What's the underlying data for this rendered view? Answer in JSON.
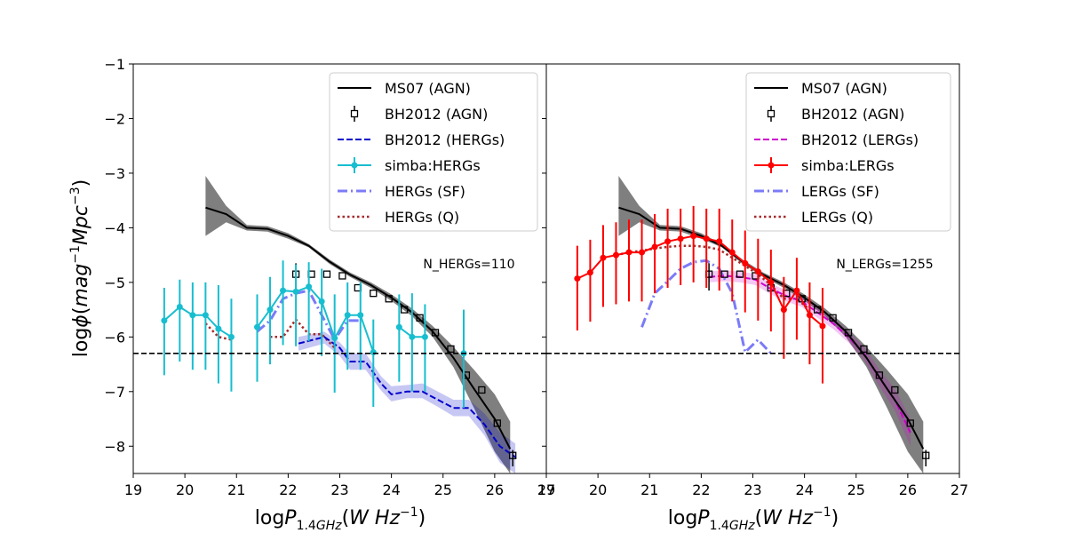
{
  "chart_data": [
    {
      "type": "line",
      "panel": "left",
      "annotation": "N_HERGs=110",
      "xlabel": "logP_{1.4GHz}(W Hz^{-1})",
      "ylabel": "logϕ(mag^{-1}Mpc^{-3})",
      "xlim": [
        19,
        27
      ],
      "ylim": [
        -8.5,
        -1
      ],
      "xticks": [
        "19",
        "20",
        "21",
        "22",
        "23",
        "24",
        "25",
        "26",
        "27"
      ],
      "yticks": [
        "−1",
        "−2",
        "−3",
        "−4",
        "−5",
        "−6",
        "−7",
        "−8"
      ],
      "hline": -6.3,
      "legend": [
        "MS07 (AGN)",
        "BH2012 (AGN)",
        "BH2012 (HERGs)",
        "simba:HERGs",
        "HERGs (SF)",
        "HERGs (Q)"
      ],
      "series": [
        {
          "name": "MS07 (AGN)",
          "color": "#000000",
          "x": [
            20.4,
            20.8,
            21.2,
            21.6,
            22.0,
            22.4,
            22.8,
            23.2,
            23.6,
            24.0,
            24.4,
            24.8,
            25.2,
            25.6,
            26.0,
            26.3
          ],
          "y": [
            -3.63,
            -3.75,
            -4.0,
            -4.02,
            -4.15,
            -4.33,
            -4.62,
            -4.86,
            -5.05,
            -5.28,
            -5.55,
            -5.9,
            -6.38,
            -6.95,
            -7.5,
            -8.05
          ],
          "band_upper": [
            -3.05,
            -3.6,
            -3.95,
            -3.97,
            -4.1,
            -4.3,
            -4.58,
            -4.82,
            -5.0,
            -5.22,
            -5.48,
            -5.8,
            -6.18,
            -6.6,
            -7.05,
            -7.55
          ],
          "band_lower": [
            -4.15,
            -3.9,
            -4.05,
            -4.07,
            -4.2,
            -4.36,
            -4.66,
            -4.9,
            -5.1,
            -5.34,
            -5.62,
            -6.0,
            -6.55,
            -7.3,
            -8.1,
            -8.5
          ]
        },
        {
          "name": "BH2012 (AGN)",
          "color": "#000000",
          "x": [
            22.15,
            22.45,
            22.75,
            23.05,
            23.35,
            23.65,
            23.95,
            24.25,
            24.55,
            24.85,
            25.15,
            25.45,
            25.75,
            26.05,
            26.35
          ],
          "y": [
            -4.85,
            -4.85,
            -4.85,
            -4.88,
            -5.1,
            -5.2,
            -5.3,
            -5.5,
            -5.65,
            -5.92,
            -6.22,
            -6.7,
            -6.97,
            -7.58,
            -8.17
          ],
          "err_low": [
            0.3,
            0,
            0,
            0,
            0,
            0,
            0,
            0,
            0,
            0,
            0,
            0,
            0,
            0,
            0.2
          ],
          "err_high": [
            0.2,
            0,
            0,
            0,
            0,
            0,
            0,
            0,
            0,
            0,
            0,
            0,
            0,
            0,
            0.1
          ]
        },
        {
          "name": "BH2012 (HERGs)",
          "color": "#0000cc",
          "x": [
            22.2,
            22.7,
            23.0,
            23.2,
            23.5,
            23.8,
            24.0,
            24.3,
            24.6,
            24.9,
            25.2,
            25.5,
            25.8,
            26.1,
            26.4
          ],
          "y": [
            -6.12,
            -6.0,
            -6.2,
            -6.45,
            -6.45,
            -6.85,
            -7.05,
            -7.0,
            -7.0,
            -7.15,
            -7.3,
            -7.3,
            -7.6,
            -8.0,
            -8.2
          ],
          "band_upper": [
            -6.0,
            -5.9,
            -6.1,
            -6.3,
            -6.3,
            -6.72,
            -6.9,
            -6.88,
            -6.85,
            -7.0,
            -7.15,
            -7.15,
            -7.4,
            -7.75,
            -7.95
          ],
          "band_lower": [
            -6.25,
            -6.12,
            -6.35,
            -6.6,
            -6.6,
            -6.98,
            -7.18,
            -7.12,
            -7.12,
            -7.28,
            -7.45,
            -7.45,
            -7.8,
            -8.3,
            -8.5
          ]
        },
        {
          "name": "simba:HERGs",
          "color": "#17becf",
          "segments": [
            {
              "x": [
                19.6,
                19.9,
                20.15,
                20.4,
                20.65,
                20.9
              ],
              "y": [
                -5.7,
                -5.45,
                -5.6,
                -5.6,
                -5.85,
                -6.0
              ]
            },
            {
              "x": [
                21.4,
                21.65,
                21.9,
                22.15,
                22.4,
                22.65,
                22.9,
                23.15,
                23.4,
                23.65
              ],
              "y": [
                -5.82,
                -5.5,
                -5.15,
                -5.17,
                -5.08,
                -5.35,
                -6.02,
                -5.6,
                -5.6,
                -6.28
              ]
            },
            {
              "x": [
                24.15,
                24.4,
                24.65
              ],
              "y": [
                -5.82,
                -6.0,
                -6.0
              ]
            },
            {
              "x": [
                25.4
              ],
              "y": [
                -6.3
              ]
            }
          ],
          "x": [
            19.6,
            19.9,
            20.15,
            20.4,
            20.65,
            20.9,
            21.4,
            21.65,
            21.9,
            22.15,
            22.4,
            22.65,
            22.9,
            23.15,
            23.4,
            23.65,
            24.15,
            24.4,
            24.65,
            25.4
          ],
          "y": [
            -5.7,
            -5.45,
            -5.6,
            -5.6,
            -5.85,
            -6.0,
            -5.82,
            -5.5,
            -5.15,
            -5.17,
            -5.08,
            -5.35,
            -6.02,
            -5.6,
            -5.6,
            -6.28,
            -5.82,
            -6.0,
            -6.0,
            -6.3
          ],
          "err_low": [
            1.0,
            1.0,
            1.0,
            1.0,
            1.0,
            1.0,
            1.0,
            1.0,
            1.0,
            1.0,
            1.0,
            1.0,
            1.0,
            1.0,
            1.0,
            1.0,
            1.0,
            1.0,
            1.0,
            1.0
          ],
          "err_high": [
            0.6,
            0.5,
            0.6,
            0.6,
            0.8,
            0.7,
            0.6,
            0.6,
            0.55,
            0.5,
            0.45,
            0.6,
            0.8,
            0.6,
            0.6,
            0.6,
            0.6,
            0.8,
            0.6,
            0.8
          ]
        },
        {
          "name": "HERGs (SF)",
          "color": "#7b7bf7",
          "x": [
            21.4,
            21.65,
            21.9,
            22.15,
            22.4,
            22.65,
            22.9,
            23.15,
            23.4
          ],
          "y": [
            -5.9,
            -5.7,
            -5.3,
            -5.2,
            -5.15,
            -5.6,
            -6.05,
            -5.7,
            -5.7
          ]
        },
        {
          "name": "HERGs (Q)",
          "color": "#a52a2a",
          "segments": [
            {
              "x": [
                20.4,
                20.65,
                20.9
              ],
              "y": [
                -5.75,
                -6.0,
                -6.05
              ]
            },
            {
              "x": [
                21.65,
                21.9,
                22.15,
                22.4,
                22.65,
                22.9
              ],
              "y": [
                -6.0,
                -6.0,
                -5.68,
                -5.95,
                -5.95,
                -6.2
              ]
            }
          ]
        }
      ]
    },
    {
      "type": "line",
      "panel": "right",
      "annotation": "N_LERGs=1255",
      "xlabel": "logP_{1.4GHz}(W Hz^{-1})",
      "ylabel": "",
      "xlim": [
        19,
        27
      ],
      "ylim": [
        -8.5,
        -1
      ],
      "xticks": [
        "19",
        "20",
        "21",
        "22",
        "23",
        "24",
        "25",
        "26",
        "27"
      ],
      "yticks": [],
      "hline": -6.3,
      "legend": [
        "MS07 (AGN)",
        "BH2012 (AGN)",
        "BH2012 (LERGs)",
        "simba:LERGs",
        "LERGs (SF)",
        "LERGs (Q)"
      ],
      "series": [
        {
          "name": "MS07 (AGN)",
          "color": "#000000",
          "x": [
            20.4,
            20.8,
            21.2,
            21.6,
            22.0,
            22.4,
            22.8,
            23.2,
            23.6,
            24.0,
            24.4,
            24.8,
            25.2,
            25.6,
            26.0,
            26.3
          ],
          "y": [
            -3.63,
            -3.75,
            -4.0,
            -4.02,
            -4.15,
            -4.33,
            -4.62,
            -4.86,
            -5.05,
            -5.28,
            -5.55,
            -5.9,
            -6.38,
            -6.95,
            -7.5,
            -8.05
          ],
          "band_upper": [
            -3.05,
            -3.6,
            -3.95,
            -3.97,
            -4.1,
            -4.3,
            -4.58,
            -4.82,
            -5.0,
            -5.22,
            -5.48,
            -5.8,
            -6.18,
            -6.6,
            -7.05,
            -7.55
          ],
          "band_lower": [
            -4.15,
            -3.9,
            -4.05,
            -4.07,
            -4.2,
            -4.36,
            -4.66,
            -4.9,
            -5.1,
            -5.34,
            -5.62,
            -6.0,
            -6.55,
            -7.3,
            -8.1,
            -8.5
          ]
        },
        {
          "name": "BH2012 (AGN)",
          "color": "#000000",
          "x": [
            22.15,
            22.45,
            22.75,
            23.05,
            23.35,
            23.65,
            23.95,
            24.25,
            24.55,
            24.85,
            25.15,
            25.45,
            25.75,
            26.05,
            26.35
          ],
          "y": [
            -4.85,
            -4.85,
            -4.85,
            -4.88,
            -5.1,
            -5.2,
            -5.3,
            -5.5,
            -5.65,
            -5.92,
            -6.22,
            -6.7,
            -6.97,
            -7.58,
            -8.17
          ],
          "err_low": [
            0.3,
            0,
            0,
            0,
            0,
            0,
            0,
            0,
            0,
            0,
            0,
            0,
            0,
            0,
            0.2
          ],
          "err_high": [
            0.2,
            0,
            0,
            0,
            0,
            0,
            0,
            0,
            0,
            0,
            0,
            0,
            0,
            0,
            0.1
          ]
        },
        {
          "name": "BH2012 (LERGs)",
          "color": "#cc00cc",
          "x": [
            22.15,
            22.45,
            22.75,
            23.05,
            23.35,
            23.65,
            23.95,
            24.25,
            24.55,
            24.85,
            25.15,
            25.45,
            25.75,
            26.05
          ],
          "y": [
            -4.9,
            -4.88,
            -4.9,
            -4.95,
            -5.12,
            -5.25,
            -5.35,
            -5.55,
            -5.75,
            -6.0,
            -6.3,
            -6.75,
            -7.15,
            -7.75
          ],
          "band_upper": [
            -4.8,
            -4.78,
            -4.8,
            -4.85,
            -5.02,
            -5.15,
            -5.25,
            -5.45,
            -5.65,
            -5.9,
            -6.18,
            -6.6,
            -6.95,
            -7.5
          ],
          "band_lower": [
            -5.0,
            -4.98,
            -5.0,
            -5.05,
            -5.22,
            -5.35,
            -5.45,
            -5.65,
            -5.85,
            -6.1,
            -6.42,
            -6.9,
            -7.35,
            -8.0
          ]
        },
        {
          "name": "simba:LERGs",
          "color": "#ff0000",
          "x": [
            19.6,
            19.85,
            20.1,
            20.35,
            20.6,
            20.85,
            21.1,
            21.35,
            21.6,
            21.85,
            22.1,
            22.35,
            22.6,
            22.85,
            23.1,
            23.35,
            23.6,
            23.85,
            24.1,
            24.35
          ],
          "y": [
            -4.93,
            -4.82,
            -4.55,
            -4.5,
            -4.45,
            -4.45,
            -4.35,
            -4.25,
            -4.2,
            -4.15,
            -4.2,
            -4.25,
            -4.45,
            -4.65,
            -4.8,
            -5.0,
            -5.5,
            -5.15,
            -5.6,
            -5.8
          ],
          "err_low": [
            0.95,
            0.9,
            0.9,
            0.9,
            0.9,
            0.9,
            0.85,
            0.85,
            0.85,
            0.85,
            0.9,
            0.9,
            0.9,
            0.9,
            0.9,
            0.9,
            0.9,
            0.9,
            0.9,
            1.05
          ],
          "err_high": [
            0.6,
            0.6,
            0.6,
            0.6,
            0.6,
            0.6,
            0.6,
            0.6,
            0.55,
            0.55,
            0.55,
            0.6,
            0.6,
            0.6,
            0.6,
            0.6,
            0.6,
            0.6,
            0.6,
            0.7
          ]
        },
        {
          "name": "LERGs (SF)",
          "color": "#7b7bf7",
          "x": [
            20.85,
            21.1,
            21.35,
            21.6,
            21.85,
            22.1,
            22.35,
            22.6,
            22.85,
            23.1,
            23.35
          ],
          "y": [
            -5.82,
            -5.2,
            -4.98,
            -4.75,
            -4.63,
            -4.6,
            -4.75,
            -5.2,
            -6.28,
            -6.05,
            -6.3
          ]
        },
        {
          "name": "LERGs (Q)",
          "color": "#a52a2a",
          "x": [
            20.35,
            20.6,
            20.85,
            21.1,
            21.35,
            21.6,
            21.85,
            22.1,
            22.35,
            22.6,
            22.85,
            23.1,
            23.35,
            23.6,
            23.85,
            24.1
          ],
          "y": [
            -4.5,
            -4.45,
            -4.42,
            -4.38,
            -4.35,
            -4.33,
            -4.33,
            -4.35,
            -4.4,
            -4.55,
            -4.7,
            -4.85,
            -5.05,
            -5.3,
            -5.3,
            -5.5
          ]
        }
      ]
    }
  ]
}
